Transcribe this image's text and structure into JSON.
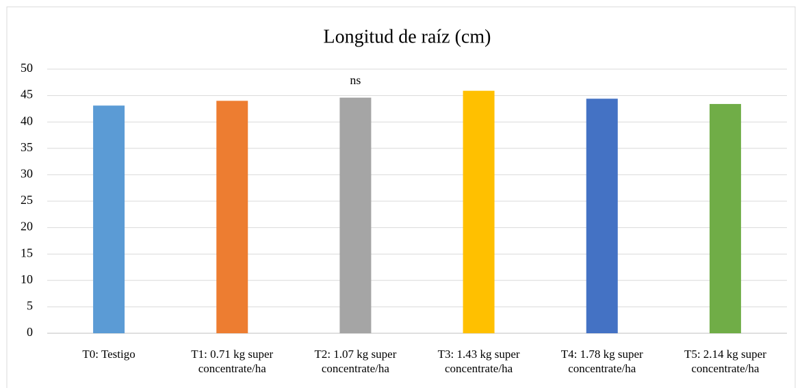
{
  "chart_data": {
    "type": "bar",
    "title": "Longitud de raíz (cm)",
    "categories": [
      "T0: Testigo",
      "T1: 0.71 kg super concentrate/ha",
      "T2: 1.07 kg super concentrate/ha",
      "T3: 1.43 kg super concentrate/ha",
      "T4: 1.78 kg super concentrate/ha",
      "T5: 2.14 kg super concentrate/ha"
    ],
    "values": [
      43.1,
      44.0,
      44.6,
      45.9,
      44.4,
      43.4
    ],
    "colors": [
      "#5b9bd5",
      "#ed7d31",
      "#a5a5a5",
      "#ffc000",
      "#4472c4",
      "#70ad47"
    ],
    "ylim": [
      0,
      50
    ],
    "yticks": [
      0,
      5,
      10,
      15,
      20,
      25,
      30,
      35,
      40,
      45,
      50
    ],
    "grid": true,
    "annotations": [
      {
        "text": "ns",
        "x": "T2: 1.07 kg super concentrate/ha"
      }
    ]
  }
}
